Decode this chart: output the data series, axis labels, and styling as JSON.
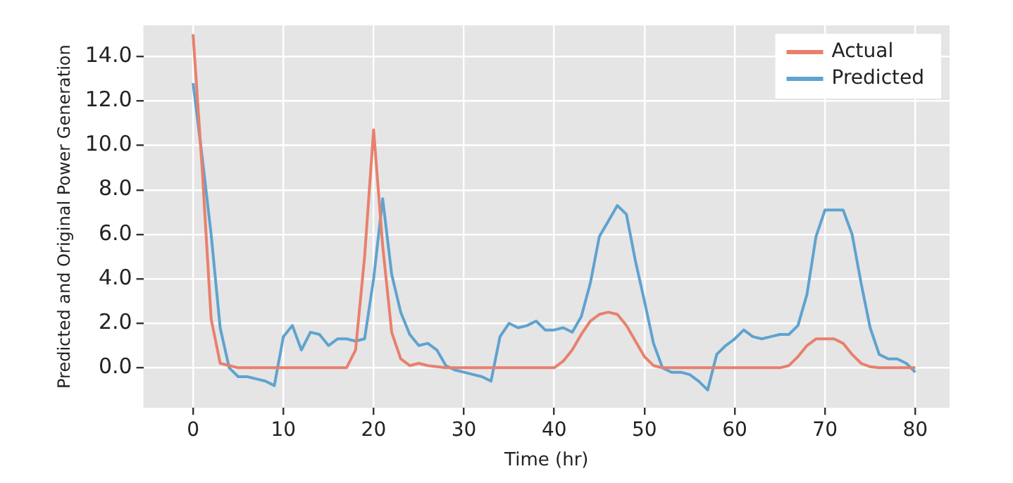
{
  "chart_data": {
    "type": "line",
    "xlabel": "Time (hr)",
    "ylabel": "Predicted and Original Power Generation",
    "x": [
      0,
      1,
      2,
      3,
      4,
      5,
      6,
      7,
      8,
      9,
      10,
      11,
      12,
      13,
      14,
      15,
      16,
      17,
      18,
      19,
      20,
      21,
      22,
      23,
      24,
      25,
      26,
      27,
      28,
      29,
      30,
      31,
      32,
      33,
      34,
      35,
      36,
      37,
      38,
      39,
      40,
      41,
      42,
      43,
      44,
      45,
      46,
      47,
      48,
      49,
      50,
      51,
      52,
      53,
      54,
      55,
      56,
      57,
      58,
      59,
      60,
      61,
      62,
      63,
      64,
      65,
      66,
      67,
      68,
      69,
      70,
      71,
      72,
      73,
      74,
      75,
      76,
      77,
      78,
      79,
      80
    ],
    "series": [
      {
        "name": "Actual",
        "color": "#e8806e",
        "values": [
          15,
          9,
          2.2,
          0.2,
          0.1,
          0,
          0,
          0,
          0,
          0,
          0,
          0,
          0,
          0,
          0,
          0,
          0,
          0,
          0.8,
          5,
          10.7,
          5.5,
          1.6,
          0.4,
          0.1,
          0.2,
          0.1,
          0.05,
          0,
          0,
          0,
          0,
          0,
          0,
          0,
          0,
          0,
          0,
          0,
          0,
          0,
          0.3,
          0.8,
          1.5,
          2.1,
          2.4,
          2.5,
          2.4,
          1.9,
          1.2,
          0.5,
          0.1,
          0,
          0,
          0,
          0,
          0,
          0,
          0,
          0,
          0,
          0,
          0,
          0,
          0,
          0,
          0.1,
          0.5,
          1,
          1.3,
          1.3,
          1.3,
          1.1,
          0.6,
          0.2,
          0.05,
          0,
          0,
          0,
          0,
          0
        ]
      },
      {
        "name": "Predicted",
        "color": "#5fa3cf",
        "values": [
          12.8,
          9.5,
          6,
          1.8,
          0,
          -0.4,
          -0.4,
          -0.5,
          -0.6,
          -0.8,
          1.4,
          1.9,
          0.8,
          1.6,
          1.5,
          1,
          1.3,
          1.3,
          1.2,
          1.3,
          4,
          7.6,
          4.2,
          2.5,
          1.5,
          1,
          1.1,
          0.8,
          0.1,
          -0.1,
          -0.2,
          -0.3,
          -0.4,
          -0.6,
          1.4,
          2,
          1.8,
          1.9,
          2.1,
          1.7,
          1.7,
          1.8,
          1.6,
          2.3,
          3.8,
          5.9,
          6.6,
          7.3,
          6.9,
          4.8,
          3,
          1.1,
          0,
          -0.2,
          -0.2,
          -0.3,
          -0.6,
          -1,
          0.6,
          1,
          1.3,
          1.7,
          1.4,
          1.3,
          1.4,
          1.5,
          1.5,
          1.9,
          3.3,
          5.9,
          7.1,
          7.1,
          7.1,
          6,
          3.8,
          1.8,
          0.6,
          0.4,
          0.4,
          0.2,
          -0.2
        ]
      }
    ],
    "xlim": [
      -5.5,
      83.8
    ],
    "xticks": [
      0,
      10,
      20,
      30,
      40,
      50,
      60,
      70,
      80
    ],
    "ylim": [
      -1.8,
      15.4
    ],
    "yticks": [
      {
        "value": 0,
        "label": "0.0"
      },
      {
        "value": 2,
        "label": "2.0"
      },
      {
        "value": 4,
        "label": "4.0"
      },
      {
        "value": 6,
        "label": "6.0"
      },
      {
        "value": 8,
        "label": "8.0"
      },
      {
        "value": 10,
        "label": "10.0"
      },
      {
        "value": 12,
        "label": "12.0"
      },
      {
        "value": 14,
        "label": "14.0"
      }
    ],
    "grid": true,
    "legend": "top right",
    "marker": "none",
    "line_style": "solid"
  }
}
